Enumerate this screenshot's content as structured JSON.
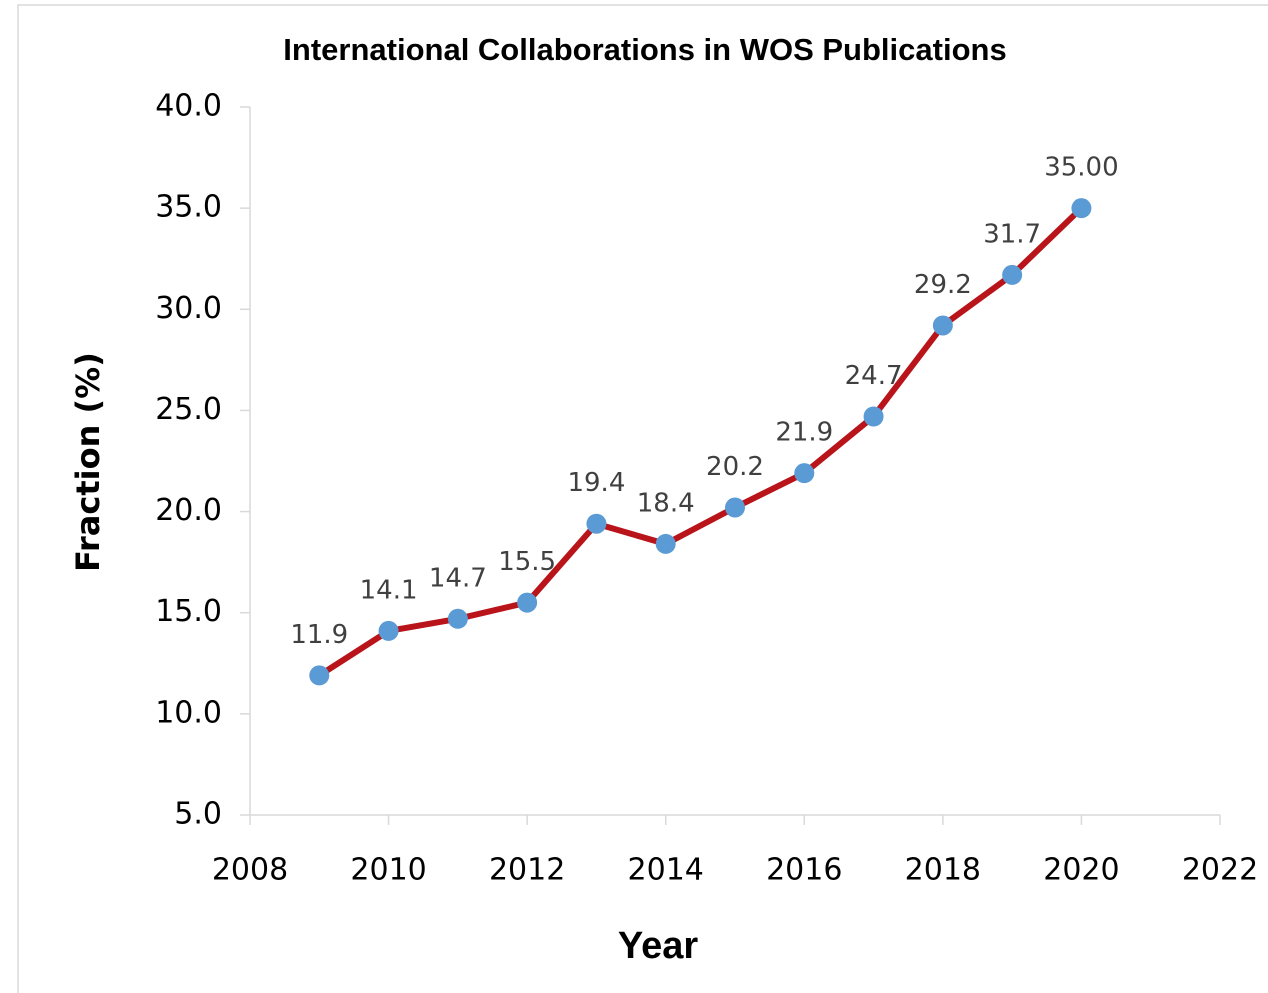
{
  "chart_data": {
    "type": "line",
    "title": "International Collaborations in WOS Publications",
    "xlabel": "Year",
    "ylabel": "Fraction (%)",
    "x": [
      2009,
      2010,
      2011,
      2012,
      2013,
      2014,
      2015,
      2016,
      2017,
      2018,
      2019,
      2020
    ],
    "values": [
      11.9,
      14.1,
      14.7,
      15.5,
      19.4,
      18.4,
      20.2,
      21.9,
      24.7,
      29.2,
      31.7,
      35
    ],
    "value_labels": [
      "11.9",
      "14.1",
      "14.7",
      "15.5",
      "19.4",
      "18.4",
      "20.2",
      "21.9",
      "24.7",
      "29.2",
      "31.7",
      "35.00"
    ],
    "color": "#b8141a",
    "marker_color": "#5b9bd5",
    "xlim": [
      2008,
      2022
    ],
    "xticks": [
      2008,
      2010,
      2012,
      2014,
      2016,
      2018,
      2020,
      2022
    ],
    "ylim": [
      5,
      40
    ],
    "yticks": [
      {
        "value": 5,
        "label": "5.0"
      },
      {
        "value": 10,
        "label": "10.0"
      },
      {
        "value": 15,
        "label": "15.0"
      },
      {
        "value": 20,
        "label": "20.0"
      },
      {
        "value": 25,
        "label": "25.0"
      },
      {
        "value": 30,
        "label": "30.0"
      },
      {
        "value": 35,
        "label": "35.0"
      },
      {
        "value": 40,
        "label": "40.0"
      }
    ]
  }
}
